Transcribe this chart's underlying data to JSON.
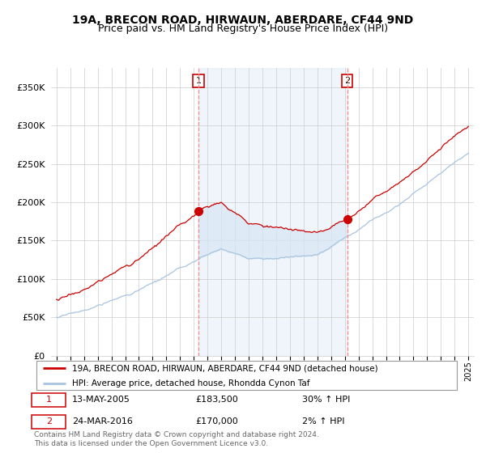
{
  "title1": "19A, BRECON ROAD, HIRWAUN, ABERDARE, CF44 9ND",
  "title2": "Price paid vs. HM Land Registry's House Price Index (HPI)",
  "legend_line1": "19A, BRECON ROAD, HIRWAUN, ABERDARE, CF44 9ND (detached house)",
  "legend_line2": "HPI: Average price, detached house, Rhondda Cynon Taf",
  "transaction1_date": "13-MAY-2005",
  "transaction1_price": "£183,500",
  "transaction1_hpi": "30% ↑ HPI",
  "transaction2_date": "24-MAR-2016",
  "transaction2_price": "£170,000",
  "transaction2_hpi": "2% ↑ HPI",
  "footer": "Contains HM Land Registry data © Crown copyright and database right 2024.\nThis data is licensed under the Open Government Licence v3.0.",
  "hpi_color": "#a8c4e0",
  "price_color": "#cc0000",
  "vline_color": "#ff8888",
  "fill_color": "#d8e8f5",
  "box_color": "#cc0000",
  "ylim": [
    0,
    375000
  ],
  "yticks": [
    0,
    50000,
    100000,
    150000,
    200000,
    250000,
    300000,
    350000
  ],
  "year_start": 1995,
  "year_end": 2025
}
